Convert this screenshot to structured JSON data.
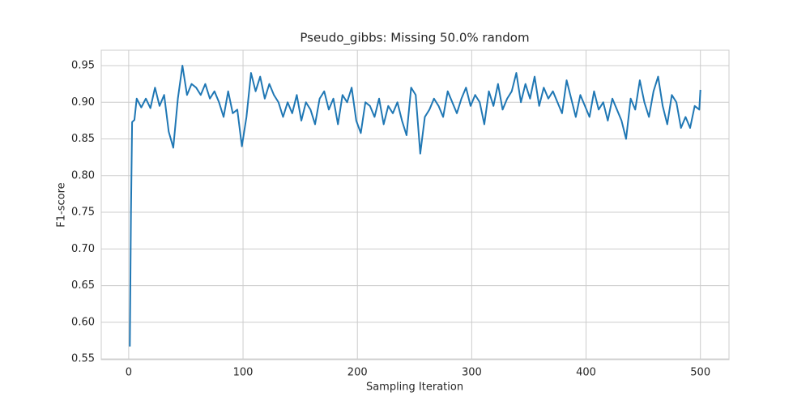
{
  "chart_data": {
    "type": "line",
    "title": "Pseudo_gibbs: Missing 50.0% random",
    "x_label": "Sampling Iteration",
    "y_label": "F1-score",
    "x": [
      1,
      2,
      3,
      5,
      7,
      11,
      15,
      19,
      23,
      27,
      31,
      35,
      39,
      43,
      47,
      51,
      55,
      59,
      63,
      67,
      71,
      75,
      79,
      83,
      87,
      91,
      95,
      99,
      103,
      107,
      111,
      115,
      119,
      123,
      127,
      131,
      135,
      139,
      143,
      147,
      151,
      155,
      159,
      163,
      167,
      171,
      175,
      179,
      183,
      187,
      191,
      195,
      199,
      203,
      207,
      211,
      215,
      219,
      223,
      227,
      231,
      235,
      239,
      243,
      247,
      251,
      255,
      259,
      263,
      267,
      271,
      275,
      279,
      283,
      287,
      291,
      295,
      299,
      303,
      307,
      311,
      315,
      319,
      323,
      327,
      331,
      335,
      339,
      343,
      347,
      351,
      355,
      359,
      363,
      367,
      371,
      375,
      379,
      383,
      387,
      391,
      395,
      399,
      403,
      407,
      411,
      415,
      419,
      423,
      427,
      431,
      435,
      439,
      443,
      447,
      451,
      455,
      459,
      463,
      467,
      471,
      475,
      479,
      483,
      487,
      491,
      495,
      499,
      500
    ],
    "values": [
      0.567,
      0.75,
      0.873,
      0.876,
      0.905,
      0.893,
      0.905,
      0.892,
      0.92,
      0.895,
      0.91,
      0.86,
      0.838,
      0.905,
      0.95,
      0.91,
      0.925,
      0.92,
      0.91,
      0.925,
      0.905,
      0.915,
      0.9,
      0.88,
      0.915,
      0.885,
      0.89,
      0.84,
      0.88,
      0.94,
      0.915,
      0.935,
      0.905,
      0.925,
      0.91,
      0.9,
      0.88,
      0.9,
      0.885,
      0.91,
      0.875,
      0.9,
      0.89,
      0.87,
      0.905,
      0.915,
      0.89,
      0.905,
      0.87,
      0.91,
      0.9,
      0.92,
      0.875,
      0.858,
      0.9,
      0.895,
      0.88,
      0.905,
      0.87,
      0.895,
      0.885,
      0.9,
      0.875,
      0.855,
      0.92,
      0.91,
      0.83,
      0.88,
      0.89,
      0.905,
      0.895,
      0.88,
      0.915,
      0.9,
      0.885,
      0.905,
      0.92,
      0.895,
      0.91,
      0.9,
      0.87,
      0.915,
      0.895,
      0.925,
      0.89,
      0.905,
      0.915,
      0.94,
      0.9,
      0.925,
      0.905,
      0.935,
      0.895,
      0.92,
      0.905,
      0.915,
      0.9,
      0.885,
      0.93,
      0.905,
      0.88,
      0.91,
      0.895,
      0.88,
      0.915,
      0.89,
      0.9,
      0.875,
      0.905,
      0.89,
      0.875,
      0.85,
      0.905,
      0.89,
      0.93,
      0.9,
      0.88,
      0.915,
      0.935,
      0.895,
      0.87,
      0.91,
      0.9,
      0.865,
      0.88,
      0.865,
      0.895,
      0.89,
      0.917
    ],
    "color": "#1f77b4",
    "xlim": [
      -24,
      525
    ],
    "ylim": [
      0.549,
      0.971
    ],
    "xticks": [
      0,
      100,
      200,
      300,
      400,
      500
    ],
    "yticks": [
      0.55,
      {
        "value": 0.6,
        "label": "0.60"
      },
      0.65,
      {
        "value": 0.7,
        "label": "0.70"
      },
      0.75,
      {
        "value": 0.8,
        "label": "0.80"
      },
      0.85,
      {
        "value": 0.9,
        "label": "0.90"
      },
      0.95
    ],
    "grid": true
  }
}
